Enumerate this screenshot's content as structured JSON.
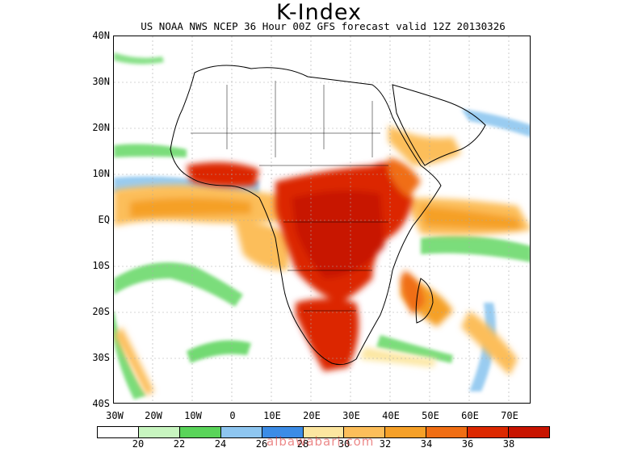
{
  "title": "K-Index",
  "subtitle": "US NOAA NWS NCEP 36 Hour 00Z GFS forecast valid 12Z 20130326",
  "lat_labels": [
    "40N",
    "30N",
    "20N",
    "10N",
    "EQ",
    "10S",
    "20S",
    "30S",
    "40S"
  ],
  "lon_labels": [
    "30W",
    "20W",
    "10W",
    "0",
    "10E",
    "20E",
    "30E",
    "40E",
    "50E",
    "60E",
    "70E"
  ],
  "legend": {
    "labels": [
      "20",
      "22",
      "24",
      "26",
      "28",
      "30",
      "32",
      "34",
      "36",
      "38"
    ],
    "colors": [
      "#ffffff",
      "#c8f5c0",
      "#5ad45a",
      "#8ec6f0",
      "#3c8ce6",
      "#fce6a0",
      "#fcbe5a",
      "#f5a028",
      "#f06e14",
      "#dc2800",
      "#c81400"
    ]
  },
  "watermark": "albawabari.com",
  "colors": {
    "land_outline": "#000000",
    "grid": "#aaaaaa"
  }
}
